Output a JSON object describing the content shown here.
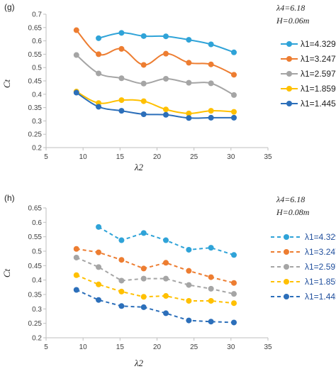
{
  "chart_data": [
    {
      "type": "line",
      "panel_label": "(g)",
      "params": [
        "λ4=6.18",
        "H=0.06m"
      ],
      "xlabel": "λ2",
      "ylabel": "Ct",
      "xlim": [
        5,
        35
      ],
      "ylim": [
        0.2,
        0.7
      ],
      "xticks": [
        5,
        10,
        15,
        20,
        25,
        30,
        35
      ],
      "yticks": [
        0.2,
        0.25,
        0.3,
        0.35,
        0.4,
        0.45,
        0.5,
        0.55,
        0.6,
        0.65,
        0.7
      ],
      "style": "solid-smooth",
      "series": [
        {
          "name": "λ1=4.329",
          "color": "#2fa3d8",
          "x": [
            12.1,
            15.2,
            18.2,
            21.2,
            24.3,
            27.3,
            30.4
          ],
          "values": [
            0.61,
            0.63,
            0.618,
            0.617,
            0.604,
            0.587,
            0.557
          ]
        },
        {
          "name": "λ1=3.247",
          "color": "#ed7d31",
          "x": [
            9.1,
            12.1,
            15.2,
            18.2,
            21.2,
            24.3,
            27.3,
            30.4
          ],
          "values": [
            0.64,
            0.55,
            0.57,
            0.51,
            0.552,
            0.518,
            0.512,
            0.473
          ]
        },
        {
          "name": "λ1=2.597",
          "color": "#a5a5a5",
          "x": [
            9.1,
            12.1,
            15.2,
            18.2,
            21.2,
            24.3,
            27.3,
            30.4
          ],
          "values": [
            0.547,
            0.478,
            0.46,
            0.44,
            0.458,
            0.443,
            0.441,
            0.397
          ]
        },
        {
          "name": "λ1=1.859",
          "color": "#ffc000",
          "x": [
            9.1,
            12.1,
            15.2,
            18.2,
            21.2,
            24.3,
            27.3,
            30.4
          ],
          "values": [
            0.41,
            0.367,
            0.378,
            0.374,
            0.343,
            0.328,
            0.338,
            0.334
          ]
        },
        {
          "name": "λ1=1.445",
          "color": "#2c6fba",
          "x": [
            9.1,
            12.1,
            15.2,
            18.2,
            21.2,
            24.3,
            27.3,
            30.4
          ],
          "values": [
            0.406,
            0.353,
            0.338,
            0.325,
            0.323,
            0.311,
            0.312,
            0.312
          ]
        }
      ]
    },
    {
      "type": "line",
      "panel_label": "(h)",
      "params": [
        "λ4=6.18",
        "H=0.08m"
      ],
      "xlabel": "λ2",
      "ylabel": "Ct",
      "xlim": [
        5,
        35
      ],
      "ylim": [
        0.2,
        0.65
      ],
      "xticks": [
        5,
        10,
        15,
        20,
        25,
        30,
        35
      ],
      "yticks": [
        0.2,
        0.25,
        0.3,
        0.35,
        0.4,
        0.45,
        0.5,
        0.55,
        0.6,
        0.65
      ],
      "style": "dashed",
      "series": [
        {
          "name": "λ1=4.329",
          "color": "#2fa3d8",
          "x": [
            12.1,
            15.2,
            18.2,
            21.2,
            24.3,
            27.3,
            30.4
          ],
          "values": [
            0.584,
            0.538,
            0.563,
            0.538,
            0.505,
            0.512,
            0.487
          ]
        },
        {
          "name": "λ1=3.247",
          "color": "#ed7d31",
          "x": [
            9.1,
            12.1,
            15.2,
            18.2,
            21.2,
            24.3,
            27.3,
            30.4
          ],
          "values": [
            0.508,
            0.496,
            0.47,
            0.44,
            0.46,
            0.432,
            0.41,
            0.39
          ]
        },
        {
          "name": "λ1=2.597",
          "color": "#a5a5a5",
          "x": [
            9.1,
            12.1,
            15.2,
            18.2,
            21.2,
            24.3,
            27.3,
            30.4
          ],
          "values": [
            0.478,
            0.445,
            0.398,
            0.405,
            0.405,
            0.383,
            0.37,
            0.352
          ]
        },
        {
          "name": "λ1=1.859",
          "color": "#ffc000",
          "x": [
            9.1,
            12.1,
            15.2,
            18.2,
            21.2,
            24.3,
            27.3,
            30.4
          ],
          "values": [
            0.417,
            0.385,
            0.36,
            0.342,
            0.345,
            0.328,
            0.328,
            0.32
          ]
        },
        {
          "name": "λ1=1.445",
          "color": "#2c6fba",
          "x": [
            9.1,
            12.1,
            15.2,
            18.2,
            21.2,
            24.3,
            27.3,
            30.4
          ],
          "values": [
            0.366,
            0.331,
            0.31,
            0.306,
            0.285,
            0.26,
            0.256,
            0.253
          ]
        }
      ]
    }
  ]
}
